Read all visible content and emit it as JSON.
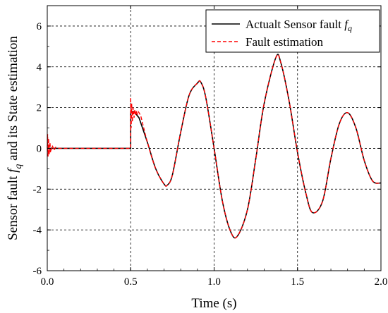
{
  "chart_data": {
    "type": "line",
    "xlabel": "Time (s)",
    "ylabel": "Sensor fault f_q and its State estimation",
    "xlim": [
      0,
      2.0
    ],
    "ylim": [
      -6,
      7
    ],
    "x_ticks": [
      0.0,
      0.5,
      1.0,
      1.5,
      2.0
    ],
    "x_tick_labels": [
      "0.0",
      "0.5",
      "1.0",
      "1.5",
      "2.0"
    ],
    "y_ticks": [
      -6,
      -4,
      -2,
      0,
      2,
      4,
      6
    ],
    "y_tick_labels": [
      "-6",
      "-4",
      "-2",
      "0",
      "2",
      "4",
      "6"
    ],
    "grid": true,
    "legend_position": "top-right",
    "series": [
      {
        "name": "Actualt Sensor fault f_q",
        "legend_main": "Actualt Sensor fault ",
        "legend_symbol": "f",
        "legend_subscript": "q",
        "color": "#000000",
        "style": "solid",
        "x": [
          0.0,
          0.5,
          0.5,
          0.52,
          0.55,
          0.6,
          0.65,
          0.7,
          0.72,
          0.75,
          0.8,
          0.85,
          0.9,
          0.92,
          0.95,
          1.0,
          1.05,
          1.1,
          1.14,
          1.2,
          1.25,
          1.3,
          1.37,
          1.4,
          1.45,
          1.5,
          1.55,
          1.59,
          1.65,
          1.7,
          1.75,
          1.8,
          1.85,
          1.9,
          1.95,
          2.0
        ],
        "y": [
          0.0,
          0.0,
          1.8,
          1.8,
          1.5,
          0.3,
          -1.0,
          -1.75,
          -1.8,
          -1.3,
          0.8,
          2.6,
          3.2,
          3.25,
          2.5,
          0.0,
          -2.6,
          -4.1,
          -4.3,
          -3.0,
          -0.5,
          2.2,
          4.45,
          4.2,
          2.3,
          -0.2,
          -2.2,
          -3.15,
          -2.6,
          -0.5,
          1.2,
          1.75,
          1.0,
          -0.6,
          -1.6,
          -1.7
        ]
      },
      {
        "name": "Fault estimation",
        "color": "#ff0000",
        "style": "dashed",
        "x": [
          0.0,
          0.002,
          0.005,
          0.008,
          0.012,
          0.016,
          0.02,
          0.03,
          0.04,
          0.05,
          0.07,
          0.1,
          0.5,
          0.5,
          0.503,
          0.506,
          0.51,
          0.515,
          0.52,
          0.525,
          0.53,
          0.535,
          0.54,
          0.545,
          0.55,
          0.56,
          0.6,
          0.65,
          0.7,
          0.72,
          0.75,
          0.8,
          0.85,
          0.9,
          0.92,
          0.95,
          1.0,
          1.05,
          1.1,
          1.14,
          1.2,
          1.25,
          1.3,
          1.37,
          1.4,
          1.45,
          1.5,
          1.55,
          1.59,
          1.65,
          1.7,
          1.75,
          1.8,
          1.85,
          1.9,
          1.95,
          2.0
        ],
        "y": [
          0.0,
          0.7,
          -0.4,
          0.5,
          -0.3,
          0.3,
          -0.2,
          0.15,
          -0.1,
          0.05,
          0.0,
          0.0,
          0.0,
          2.5,
          1.0,
          2.2,
          1.3,
          2.0,
          1.5,
          1.9,
          1.6,
          1.85,
          1.65,
          1.8,
          1.75,
          1.6,
          0.3,
          -1.0,
          -1.75,
          -1.8,
          -1.3,
          0.8,
          2.6,
          3.2,
          3.25,
          2.5,
          0.0,
          -2.6,
          -4.1,
          -4.3,
          -3.0,
          -0.5,
          2.2,
          4.45,
          4.2,
          2.3,
          -0.2,
          -2.2,
          -3.15,
          -2.6,
          -0.5,
          1.2,
          1.75,
          1.0,
          -0.6,
          -1.6,
          -1.7
        ]
      }
    ]
  },
  "ylabel_parts": {
    "a": "Sensor fault ",
    "f": "f",
    "q": "q",
    "b": " and its State estimation"
  }
}
